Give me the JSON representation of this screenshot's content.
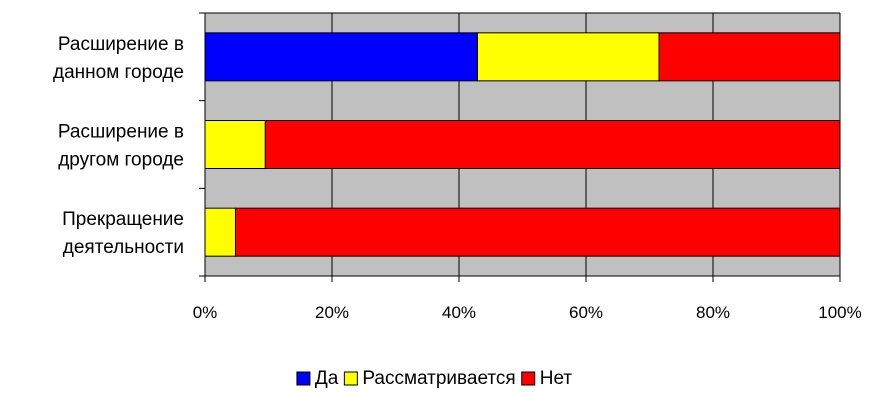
{
  "chart_data": {
    "type": "bar",
    "orientation": "horizontal",
    "stacked": "percent",
    "categories": [
      [
        "Расширение в",
        "данном городе"
      ],
      [
        "Расширение в",
        "другом городе"
      ],
      [
        "Прекращение",
        "деятельности"
      ]
    ],
    "series": [
      {
        "name": "Да",
        "color": "#0000ff",
        "values": [
          42.9,
          0,
          0
        ]
      },
      {
        "name": "Рассматривается",
        "color": "#ffff00",
        "values": [
          28.6,
          9.5,
          4.8
        ]
      },
      {
        "name": "Нет",
        "color": "#ff0000",
        "values": [
          28.5,
          90.5,
          95.2
        ]
      }
    ],
    "x_ticks": [
      "0%",
      "20%",
      "40%",
      "60%",
      "80%",
      "100%"
    ],
    "xlim": [
      0,
      100
    ],
    "grid": true,
    "plot_background": "#c0c0c0",
    "legend_position": "bottom"
  }
}
